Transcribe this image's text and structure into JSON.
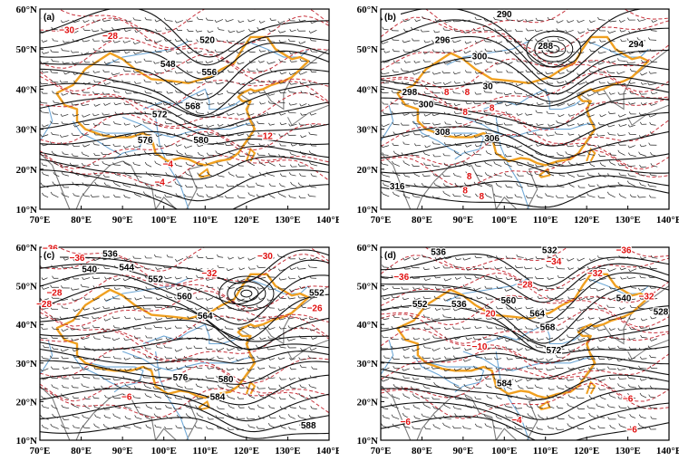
{
  "colors": {
    "height": "#111111",
    "temp": "#c8323c",
    "border": "#f0a020",
    "river": "#6fa8d6",
    "coast": "#7a7a7a"
  },
  "axes": {
    "x_ticks": [
      "70°E",
      "80°E",
      "90°E",
      "100°E",
      "110°E",
      "120°E",
      "130°E",
      "140°E"
    ],
    "y_ticks": [
      "60°N",
      "50°N",
      "40°N",
      "30°N",
      "20°N",
      "10°N"
    ]
  },
  "panels": [
    {
      "label": "(a)",
      "black_labels": [
        {
          "t": "520",
          "lon": 110.5,
          "lat": 51.5
        },
        {
          "t": "548",
          "lon": 101,
          "lat": 45.5
        },
        {
          "t": "556",
          "lon": 111,
          "lat": 43.5
        },
        {
          "t": "568",
          "lon": 107,
          "lat": 35
        },
        {
          "t": "572",
          "lon": 99,
          "lat": 33
        },
        {
          "t": "576",
          "lon": 95.5,
          "lat": 26.5
        },
        {
          "t": "580",
          "lon": 109,
          "lat": 26.5
        }
      ],
      "red_labels": [
        {
          "t": "−30",
          "lon": 76.5,
          "lat": 54
        },
        {
          "t": "−28",
          "lon": 87,
          "lat": 52.5
        },
        {
          "t": "−12",
          "lon": 124.5,
          "lat": 27.5
        },
        {
          "t": "−4",
          "lon": 101,
          "lat": 20.5
        },
        {
          "t": "−4",
          "lon": 99,
          "lat": 16
        }
      ]
    },
    {
      "label": "(b)",
      "black_labels": [
        {
          "t": "290",
          "lon": 100,
          "lat": 58
        },
        {
          "t": "296",
          "lon": 85,
          "lat": 51.5
        },
        {
          "t": "288",
          "lon": 110,
          "lat": 50
        },
        {
          "t": "300",
          "lon": 94,
          "lat": 47.5
        },
        {
          "t": "294",
          "lon": 132,
          "lat": 50.5
        },
        {
          "t": "30",
          "lon": 96,
          "lat": 40
        },
        {
          "t": "298",
          "lon": 77,
          "lat": 38.5
        },
        {
          "t": "300",
          "lon": 81,
          "lat": 35.5
        },
        {
          "t": "308",
          "lon": 85,
          "lat": 28.5
        },
        {
          "t": "306",
          "lon": 97,
          "lat": 27
        },
        {
          "t": "316",
          "lon": 74,
          "lat": 15
        }
      ],
      "red_labels": [
        {
          "t": "8",
          "lon": 86,
          "lat": 38.5
        },
        {
          "t": "8",
          "lon": 91,
          "lat": 38.5
        },
        {
          "t": "8",
          "lon": 90.5,
          "lat": 33.5
        },
        {
          "t": "8",
          "lon": 97,
          "lat": 34.5
        },
        {
          "t": "8",
          "lon": 91.5,
          "lat": 17.5
        },
        {
          "t": "8",
          "lon": 90.5,
          "lat": 14
        },
        {
          "t": "8",
          "lon": 94.5,
          "lat": 12.5
        }
      ]
    },
    {
      "label": "(c)",
      "black_labels": [
        {
          "t": "536",
          "lon": 87,
          "lat": 57.5
        },
        {
          "t": "540",
          "lon": 82,
          "lat": 53.5
        },
        {
          "t": "544",
          "lon": 91,
          "lat": 54
        },
        {
          "t": "552",
          "lon": 98,
          "lat": 51
        },
        {
          "t": "560",
          "lon": 105,
          "lat": 46.5
        },
        {
          "t": "564",
          "lon": 110,
          "lat": 41.5
        },
        {
          "t": "552",
          "lon": 137,
          "lat": 47.5
        },
        {
          "t": "576",
          "lon": 104,
          "lat": 25.5
        },
        {
          "t": "580",
          "lon": 115,
          "lat": 25
        },
        {
          "t": "584",
          "lon": 113,
          "lat": 20.5
        },
        {
          "t": "588",
          "lon": 135,
          "lat": 13
        }
      ],
      "red_labels": [
        {
          "t": "−36",
          "lon": 72.5,
          "lat": 59
        },
        {
          "t": "−36",
          "lon": 79,
          "lat": 56.5
        },
        {
          "t": "−32",
          "lon": 111,
          "lat": 52.5
        },
        {
          "t": "−30",
          "lon": 124.5,
          "lat": 57
        },
        {
          "t": "−28",
          "lon": 73.5,
          "lat": 47.5
        },
        {
          "t": "−28",
          "lon": 71,
          "lat": 44.5
        },
        {
          "t": "−26",
          "lon": 136.5,
          "lat": 43.5
        },
        {
          "t": "−6",
          "lon": 91,
          "lat": 20.5
        }
      ]
    },
    {
      "label": "(d)",
      "black_labels": [
        {
          "t": "536",
          "lon": 84,
          "lat": 58
        },
        {
          "t": "532",
          "lon": 111,
          "lat": 58.5
        },
        {
          "t": "552",
          "lon": 79.5,
          "lat": 44.5
        },
        {
          "t": "536",
          "lon": 89,
          "lat": 44.5
        },
        {
          "t": "560",
          "lon": 101,
          "lat": 45.5
        },
        {
          "t": "564",
          "lon": 108,
          "lat": 42
        },
        {
          "t": "568",
          "lon": 110.5,
          "lat": 38.5
        },
        {
          "t": "540",
          "lon": 129,
          "lat": 46
        },
        {
          "t": "528",
          "lon": 138,
          "lat": 42.5
        },
        {
          "t": "572",
          "lon": 112,
          "lat": 32.5
        },
        {
          "t": "584",
          "lon": 100,
          "lat": 24
        }
      ],
      "red_labels": [
        {
          "t": "−36",
          "lon": 129,
          "lat": 58.5
        },
        {
          "t": "−34",
          "lon": 112,
          "lat": 55.5
        },
        {
          "t": "−32",
          "lon": 122,
          "lat": 52.5
        },
        {
          "t": "−36",
          "lon": 75,
          "lat": 51.5
        },
        {
          "t": "−28",
          "lon": 105,
          "lat": 49.5
        },
        {
          "t": "−20",
          "lon": 96,
          "lat": 42
        },
        {
          "t": "−32",
          "lon": 134.5,
          "lat": 46.5
        },
        {
          "t": "−10",
          "lon": 94,
          "lat": 33.5
        },
        {
          "t": "−6",
          "lon": 130,
          "lat": 20
        },
        {
          "t": "−6",
          "lon": 76,
          "lat": 14
        },
        {
          "t": "−4",
          "lon": 103,
          "lat": 14.5
        },
        {
          "t": "−6",
          "lon": 131,
          "lat": 12
        }
      ]
    }
  ]
}
